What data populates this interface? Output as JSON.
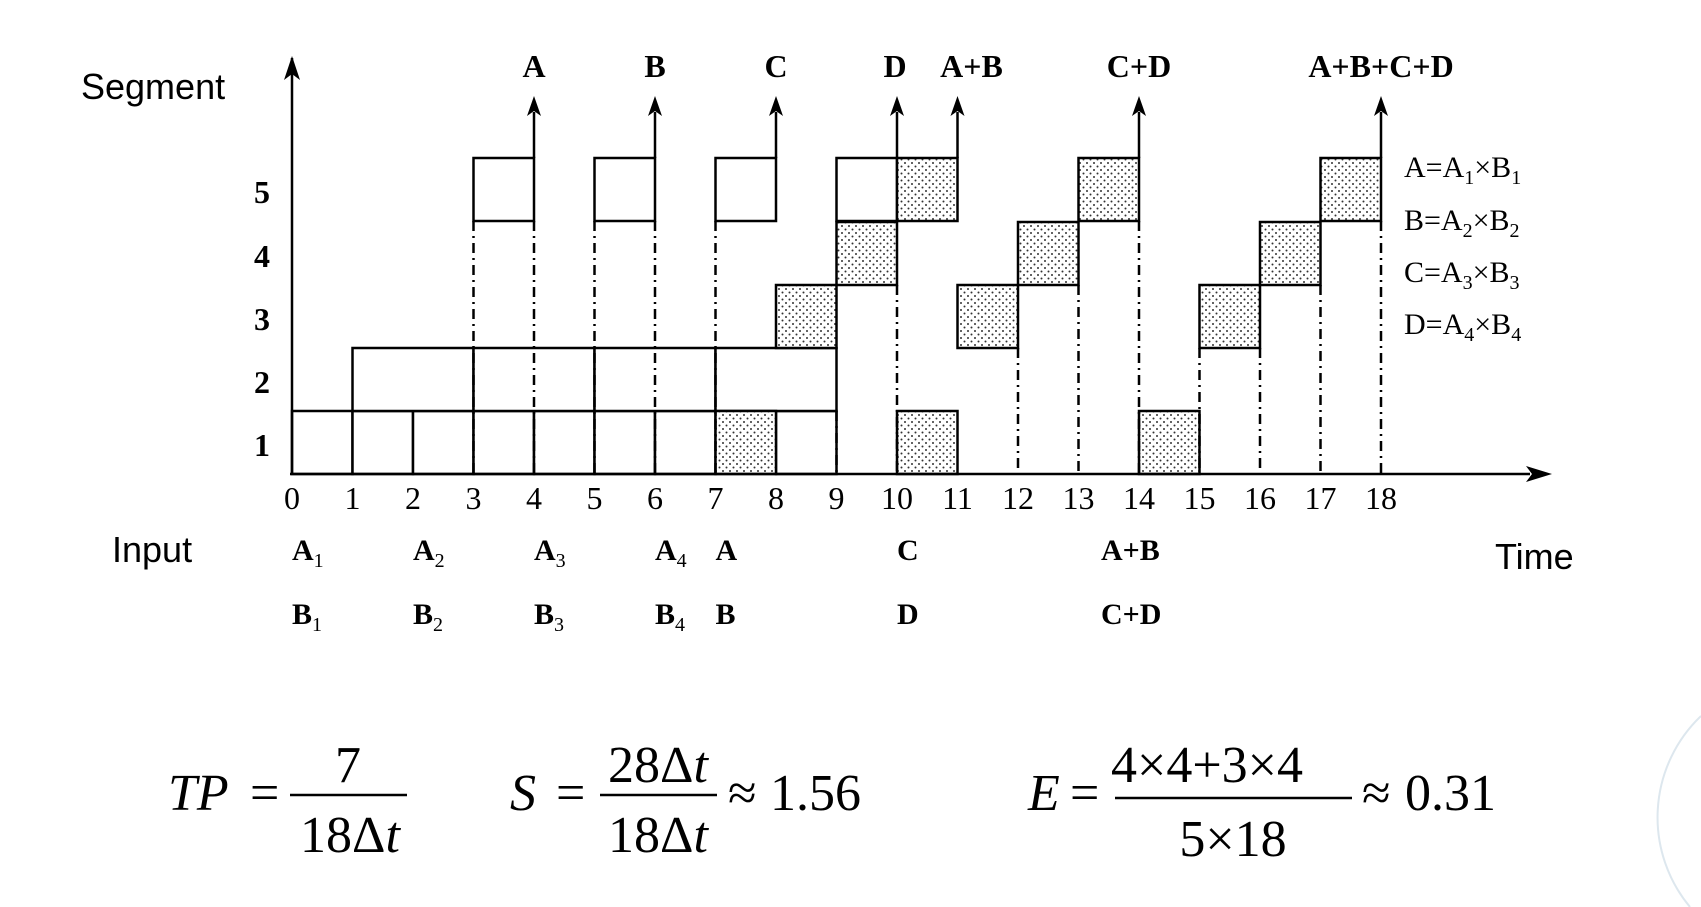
{
  "diagram": {
    "y_axis_label": "Segment",
    "x_axis_label": "Time",
    "input_label": "Input",
    "segments": [
      "1",
      "2",
      "3",
      "4",
      "5"
    ],
    "time_ticks": [
      "0",
      "1",
      "2",
      "3",
      "4",
      "5",
      "6",
      "7",
      "8",
      "9",
      "10",
      "11",
      "12",
      "13",
      "14",
      "15",
      "16",
      "17",
      "18"
    ],
    "outputs": [
      {
        "label": "A",
        "t": 4
      },
      {
        "label": "B",
        "t": 6
      },
      {
        "label": "C",
        "t": 8
      },
      {
        "label": "D",
        "t": 10
      },
      {
        "label": "A+B",
        "t": 11
      },
      {
        "label": "C+D",
        "t": 14
      },
      {
        "label": "A+B+C+D",
        "t": 18
      }
    ],
    "inputs_row1": [
      {
        "t": 0,
        "base": "A",
        "sub": "1"
      },
      {
        "t": 2,
        "base": "A",
        "sub": "2"
      },
      {
        "t": 4,
        "base": "A",
        "sub": "3"
      },
      {
        "t": 6,
        "base": "A",
        "sub": "4"
      },
      {
        "t": 7,
        "base": "A",
        "sub": ""
      },
      {
        "t": 10,
        "base": "C",
        "sub": ""
      },
      {
        "t": 14,
        "base": "A+B",
        "sub": ""
      }
    ],
    "inputs_row2": [
      {
        "t": 0,
        "base": "B",
        "sub": "1"
      },
      {
        "t": 2,
        "base": "B",
        "sub": "2"
      },
      {
        "t": 4,
        "base": "B",
        "sub": "3"
      },
      {
        "t": 6,
        "base": "B",
        "sub": "4"
      },
      {
        "t": 7,
        "base": "B",
        "sub": ""
      },
      {
        "t": 10,
        "base": "D",
        "sub": ""
      },
      {
        "t": 14,
        "base": "C+D",
        "sub": ""
      }
    ],
    "legend": [
      {
        "lhs": "A",
        "a": "A",
        "a_sub": "1",
        "b": "B",
        "b_sub": "1"
      },
      {
        "lhs": "B",
        "a": "A",
        "a_sub": "2",
        "b": "B",
        "b_sub": "2"
      },
      {
        "lhs": "C",
        "a": "A",
        "a_sub": "3",
        "b": "B",
        "b_sub": "3"
      },
      {
        "lhs": "D",
        "a": "A",
        "a_sub": "4",
        "b": "B",
        "b_sub": "4"
      }
    ],
    "mult_tasks": [
      {
        "segment": 1,
        "t0": 0,
        "t1": 1
      },
      {
        "segment": 1,
        "t0": 1,
        "t1": 2
      },
      {
        "segment": 1,
        "t0": 2,
        "t1": 3
      },
      {
        "segment": 1,
        "t0": 3,
        "t1": 4
      },
      {
        "segment": 1,
        "t0": 4,
        "t1": 5
      },
      {
        "segment": 1,
        "t0": 5,
        "t1": 6
      },
      {
        "segment": 1,
        "t0": 6,
        "t1": 7
      },
      {
        "segment": 1,
        "t0": 8,
        "t1": 9
      },
      {
        "segment": 2,
        "t0": 1,
        "t1": 3
      },
      {
        "segment": 2,
        "t0": 3,
        "t1": 5
      },
      {
        "segment": 2,
        "t0": 5,
        "t1": 7
      },
      {
        "segment": 2,
        "t0": 7,
        "t1": 9
      },
      {
        "segment": 5,
        "t0": 3,
        "t1": 4
      },
      {
        "segment": 5,
        "t0": 5,
        "t1": 6
      },
      {
        "segment": 5,
        "t0": 7,
        "t1": 8
      },
      {
        "segment": 5,
        "t0": 9,
        "t1": 10
      }
    ],
    "add_tasks": [
      {
        "segment": 1,
        "t0": 7,
        "t1": 8
      },
      {
        "segment": 3,
        "t0": 8,
        "t1": 9
      },
      {
        "segment": 4,
        "t0": 9,
        "t1": 10
      },
      {
        "segment": 5,
        "t0": 10,
        "t1": 11
      },
      {
        "segment": 1,
        "t0": 10,
        "t1": 11
      },
      {
        "segment": 3,
        "t0": 11,
        "t1": 12
      },
      {
        "segment": 4,
        "t0": 12,
        "t1": 13
      },
      {
        "segment": 5,
        "t0": 13,
        "t1": 14
      },
      {
        "segment": 1,
        "t0": 14,
        "t1": 15
      },
      {
        "segment": 3,
        "t0": 15,
        "t1": 16
      },
      {
        "segment": 4,
        "t0": 16,
        "t1": 17
      },
      {
        "segment": 5,
        "t0": 17,
        "t1": 18
      }
    ]
  },
  "formulas": {
    "tp": {
      "lhs": "TP",
      "num": "7",
      "den_num": "18",
      "delta": "Δ",
      "t": "t"
    },
    "s": {
      "lhs": "S",
      "num_num": "28",
      "den_num": "18",
      "delta": "Δ",
      "t": "t",
      "approx": "1.56"
    },
    "e": {
      "lhs": "E",
      "num": "4×4+3×4",
      "den": "5×18",
      "approx": "0.31"
    }
  }
}
